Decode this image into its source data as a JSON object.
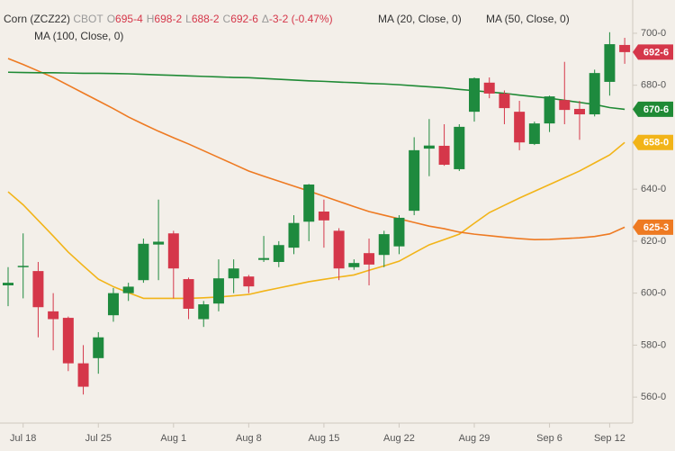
{
  "chart_data": {
    "type": "candlestick",
    "symbol": "Corn (ZCZ22)",
    "exchange": "CBOT",
    "quote": [
      {
        "key": "O",
        "label": "695-4"
      },
      {
        "key": "H",
        "label": "698-2"
      },
      {
        "key": "L",
        "label": "688-2"
      },
      {
        "key": "C",
        "label": "692-6"
      },
      {
        "key": "Δ",
        "label": "-3-2 (-0.47%)"
      }
    ],
    "categories": [
      null,
      "Jul 18",
      null,
      null,
      null,
      null,
      "Jul 25",
      null,
      null,
      null,
      null,
      "Aug 1",
      null,
      null,
      null,
      null,
      "Aug 8",
      null,
      null,
      null,
      null,
      "Aug 15",
      null,
      null,
      null,
      null,
      "Aug 22",
      null,
      null,
      null,
      null,
      "Aug 29",
      null,
      null,
      null,
      null,
      "Sep 6",
      null,
      null,
      null,
      "Sep 12",
      null
    ],
    "open": [
      603,
      610,
      608.5,
      593,
      590.5,
      573,
      575,
      591.5,
      600,
      605,
      618.7,
      623,
      605.4,
      590,
      596,
      605.7,
      606.4,
      612.8,
      612,
      617.5,
      627.5,
      631.4,
      624,
      610,
      615.4,
      614.7,
      618,
      631.7,
      655.6,
      656.7,
      647.7,
      669.8,
      681,
      676.8,
      669.8,
      657.4,
      665.3,
      674.3,
      670.9,
      668.8,
      681.3,
      695.5
    ],
    "high": [
      610,
      623,
      612,
      600,
      591,
      580,
      585,
      602,
      604,
      621,
      636,
      624,
      606,
      597,
      613,
      613,
      607,
      622,
      620,
      630,
      642,
      636,
      625,
      613,
      621,
      624,
      630,
      660,
      667,
      665,
      665,
      683,
      683,
      678,
      674,
      666,
      676,
      689,
      674,
      686,
      700.4,
      698.25
    ],
    "low": [
      595,
      598,
      583,
      578,
      570,
      561,
      569,
      589,
      597,
      604,
      605,
      598,
      590,
      587,
      593,
      600,
      600,
      612,
      610,
      615,
      620,
      617.5,
      605,
      609,
      603,
      610,
      615,
      630,
      645,
      649,
      647,
      666,
      675,
      665,
      655,
      657,
      662,
      665,
      659,
      668,
      676,
      688.25
    ],
    "close": [
      604,
      610.5,
      594.6,
      590,
      573,
      564,
      583,
      600,
      602.5,
      619,
      619.8,
      609.5,
      594,
      595.7,
      605.7,
      609.5,
      602.6,
      613.5,
      618.5,
      627,
      641.8,
      628,
      609.5,
      611.6,
      611,
      622.7,
      629,
      655,
      656.8,
      649.4,
      664,
      682.7,
      676.8,
      671.2,
      658,
      665.3,
      675.7,
      670.5,
      668.8,
      684.7,
      695.8,
      692.75
    ],
    "close_label": "692-6",
    "up_color": "#1e8a3e",
    "down_color": "#d5374a",
    "series": [
      {
        "name": "MA (20, Close, 0)",
        "color": "#f2b418",
        "last_label": "658-0",
        "values": [
          639,
          634,
          628,
          622,
          615.8,
          610.5,
          605.4,
          602.5,
          600.2,
          598,
          598,
          598,
          598,
          598.2,
          598.5,
          599,
          599.5,
          600.8,
          602,
          603.2,
          604.4,
          605.3,
          606.2,
          607,
          608.8,
          610.5,
          612.3,
          615.5,
          618.6,
          620.6,
          622.7,
          626.9,
          631,
          633.8,
          636.6,
          639.2,
          641.8,
          644.4,
          647,
          650.1,
          653.2,
          658
        ]
      },
      {
        "name": "MA (50, Close, 0)",
        "color": "#ee7a22",
        "last_label": "625-3",
        "values": [
          690.3,
          688,
          685.5,
          683,
          680,
          677,
          674,
          671,
          667.8,
          665,
          662.3,
          659.8,
          657.4,
          654.8,
          652.2,
          649.6,
          647,
          645,
          643.1,
          641.2,
          639.3,
          637.3,
          635.3,
          633.3,
          631.4,
          630,
          628.6,
          627.2,
          625.8,
          624.8,
          623.5,
          622.7,
          622.1,
          621.5,
          621,
          620.6,
          620.7,
          621,
          621.3,
          621.8,
          622.8,
          625.375
        ]
      },
      {
        "name": "MA (100, Close, 0)",
        "color": "#1f8a35",
        "last_label": "670-6",
        "values": [
          685,
          684.9,
          684.8,
          684.8,
          684.7,
          684.6,
          684.6,
          684.5,
          684.4,
          684.2,
          684,
          683.8,
          683.6,
          683.4,
          683.2,
          683,
          682.9,
          682.6,
          682.3,
          682,
          681.7,
          681.5,
          681.2,
          681,
          680.7,
          680.5,
          680.2,
          679.8,
          679.4,
          679,
          678.4,
          677.9,
          677.4,
          676.9,
          676.2,
          675.6,
          675,
          674.2,
          673.4,
          672.6,
          671.4,
          670.75
        ]
      }
    ],
    "ylim": [
      550,
      712.8
    ],
    "yticks": [
      {
        "value": 560,
        "label": "560-0"
      },
      {
        "value": 580,
        "label": "580-0"
      },
      {
        "value": 600,
        "label": "600-0"
      },
      {
        "value": 620,
        "label": "620-0"
      },
      {
        "value": 640,
        "label": "640-0"
      },
      {
        "value": 680,
        "label": "680-0"
      },
      {
        "value": 700,
        "label": "700-0"
      }
    ],
    "grid": false
  }
}
